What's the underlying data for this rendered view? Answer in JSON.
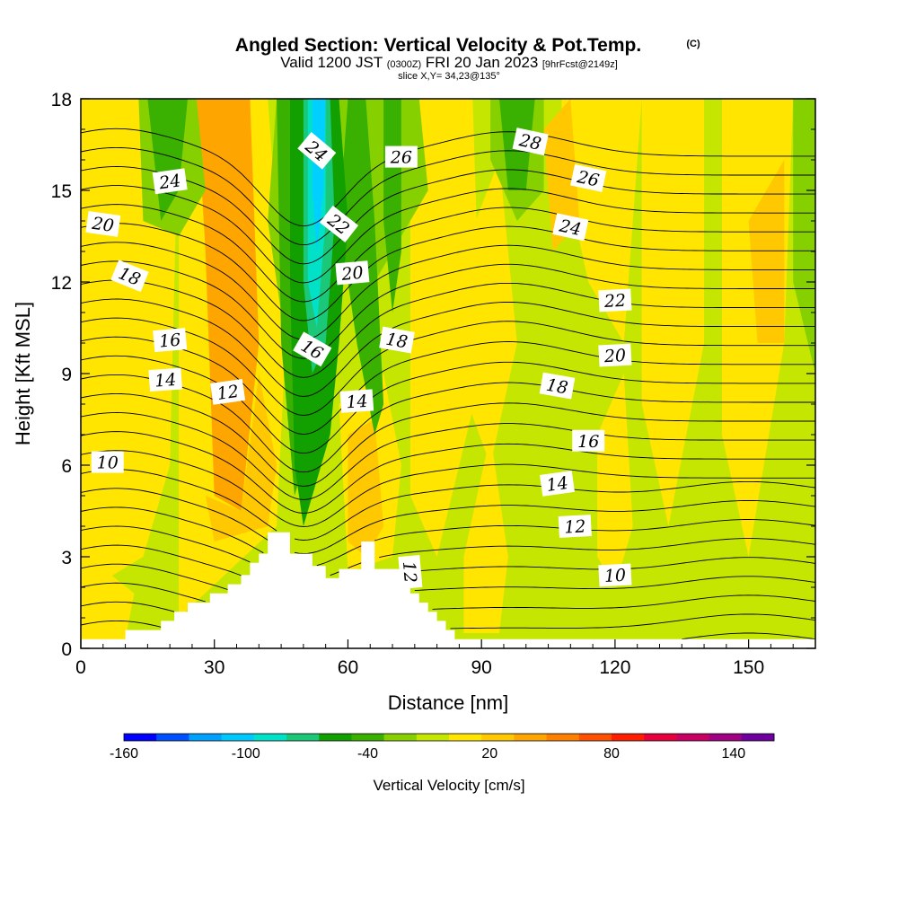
{
  "header": {
    "title": "Angled Section: Vertical Velocity & Pot.Temp.",
    "title_mark": "(C)",
    "valid_prefix": "Valid 1200 JST",
    "valid_utc": "(0300Z)",
    "valid_date": "FRI 20 Jan 2023",
    "forecast": "[9hrFcst@2149z]",
    "slice": "slice X,Y= 34,23@135°"
  },
  "chart_data": {
    "type": "heatmap",
    "title": "Angled Section: Vertical Velocity & Pot.Temp.",
    "xlabel": "Distance [nm]",
    "ylabel": "Height [Kft MSL]",
    "xlim": [
      0,
      165
    ],
    "ylim": [
      0,
      18
    ],
    "x_ticks": [
      0,
      30,
      60,
      90,
      120,
      150
    ],
    "y_ticks": [
      0,
      3,
      6,
      9,
      12,
      15,
      18
    ],
    "colors": {
      "base": "#c4e600",
      "yellow": "#ffe500",
      "gold": "#ffc800",
      "orange": "#ffa500",
      "light_green": "#87d000",
      "green": "#3ab000",
      "dark_green": "#11a000",
      "mint": "#1ac878",
      "cyan": "#00e1c8",
      "sky": "#00d0ff",
      "contour": "#000000",
      "terrain": "#ffffff"
    },
    "terrain": {
      "x": [
        0,
        10,
        10,
        18,
        18,
        21,
        21,
        24,
        24,
        29,
        29,
        33,
        33,
        36,
        36,
        38,
        38,
        40,
        40,
        42,
        42,
        47,
        47,
        52,
        52,
        55,
        55,
        58,
        58,
        61,
        61,
        63,
        63,
        66,
        66,
        72,
        72,
        74,
        74,
        76,
        76,
        78,
        78,
        80,
        80,
        82,
        82,
        84,
        84,
        86,
        86,
        88,
        88,
        165
      ],
      "height": [
        0.3,
        0.3,
        0.6,
        0.6,
        0.9,
        0.9,
        1.2,
        1.2,
        1.5,
        1.5,
        1.8,
        1.8,
        2.1,
        2.1,
        2.4,
        2.4,
        2.8,
        2.8,
        3.1,
        3.1,
        3.8,
        3.8,
        3.1,
        3.1,
        2.7,
        2.7,
        2.3,
        2.3,
        2.6,
        2.6,
        2.6,
        2.6,
        3.5,
        3.5,
        2.6,
        2.6,
        2.2,
        2.2,
        1.8,
        1.8,
        1.5,
        1.5,
        1.2,
        1.2,
        0.9,
        0.9,
        0.6,
        0.6,
        0.3,
        0.3,
        0.3,
        0.3,
        0.3,
        0.3
      ]
    },
    "velocity_regions": [
      {
        "color": "yellow",
        "points": [
          [
            0,
            18
          ],
          [
            22,
            18
          ],
          [
            20,
            6
          ],
          [
            14,
            3
          ],
          [
            5,
            2.2
          ],
          [
            0,
            2
          ]
        ]
      },
      {
        "color": "yellow",
        "points": [
          [
            22,
            18
          ],
          [
            42,
            18
          ],
          [
            46,
            10
          ],
          [
            44,
            4
          ],
          [
            22,
            1
          ]
        ]
      },
      {
        "color": "yellow",
        "points": [
          [
            58,
            8
          ],
          [
            68,
            9
          ],
          [
            72,
            6
          ],
          [
            70,
            3
          ],
          [
            60,
            2.5
          ]
        ]
      },
      {
        "color": "yellow",
        "points": [
          [
            86,
            3
          ],
          [
            92,
            7
          ],
          [
            96,
            3
          ],
          [
            94,
            0.5
          ],
          [
            86,
            0.5
          ]
        ]
      },
      {
        "color": "yellow",
        "points": [
          [
            74,
            18
          ],
          [
            88,
            18
          ],
          [
            90,
            9
          ],
          [
            80,
            3
          ],
          [
            74,
            5
          ]
        ]
      },
      {
        "color": "yellow",
        "points": [
          [
            86,
            13
          ],
          [
            94,
            16
          ],
          [
            98,
            10
          ],
          [
            92,
            6
          ],
          [
            87,
            8
          ]
        ]
      },
      {
        "color": "yellow",
        "points": [
          [
            108,
            18
          ],
          [
            126,
            18
          ],
          [
            122,
            10
          ],
          [
            114,
            12
          ],
          [
            108,
            16
          ]
        ]
      },
      {
        "color": "yellow",
        "points": [
          [
            126,
            18
          ],
          [
            140,
            18
          ],
          [
            140,
            10
          ],
          [
            132,
            4
          ],
          [
            126,
            8
          ]
        ]
      },
      {
        "color": "yellow",
        "points": [
          [
            144,
            18
          ],
          [
            160,
            18
          ],
          [
            158,
            10
          ],
          [
            150,
            3
          ],
          [
            144,
            7
          ]
        ]
      },
      {
        "color": "yellow",
        "points": [
          [
            116,
            7
          ],
          [
            122,
            9
          ],
          [
            124,
            4
          ],
          [
            120,
            2
          ],
          [
            116,
            3
          ]
        ]
      },
      {
        "color": "yellow",
        "points": [
          [
            0,
            2
          ],
          [
            6,
            2.5
          ],
          [
            12,
            1.8
          ],
          [
            10,
            0.3
          ],
          [
            0,
            0.3
          ]
        ]
      },
      {
        "color": "orange",
        "points": [
          [
            26,
            18
          ],
          [
            38,
            18
          ],
          [
            40,
            10
          ],
          [
            36,
            4.5
          ],
          [
            30,
            5
          ],
          [
            28,
            13
          ]
        ]
      },
      {
        "color": "gold",
        "points": [
          [
            28,
            5
          ],
          [
            36,
            4.5
          ],
          [
            40,
            9
          ],
          [
            44,
            6
          ],
          [
            42,
            4
          ],
          [
            30,
            3.5
          ]
        ]
      },
      {
        "color": "gold",
        "points": [
          [
            60,
            7
          ],
          [
            66,
            7.5
          ],
          [
            68,
            4
          ],
          [
            64,
            3
          ],
          [
            60,
            3.5
          ]
        ]
      },
      {
        "color": "gold",
        "points": [
          [
            104,
            17
          ],
          [
            110,
            18
          ],
          [
            112,
            14
          ],
          [
            106,
            13
          ]
        ]
      },
      {
        "color": "gold",
        "points": [
          [
            150,
            14
          ],
          [
            158,
            16
          ],
          [
            158,
            10
          ],
          [
            152,
            10
          ]
        ]
      },
      {
        "color": "light_green",
        "points": [
          [
            13,
            18
          ],
          [
            26,
            18
          ],
          [
            28,
            15
          ],
          [
            22,
            13.5
          ],
          [
            14,
            14
          ]
        ]
      },
      {
        "color": "light_green",
        "points": [
          [
            44,
            18
          ],
          [
            50,
            17
          ],
          [
            52,
            12
          ],
          [
            46,
            10
          ],
          [
            42,
            14
          ]
        ]
      },
      {
        "color": "light_green",
        "points": [
          [
            56,
            18
          ],
          [
            76,
            18
          ],
          [
            78,
            15
          ],
          [
            70,
            13
          ],
          [
            62,
            11
          ],
          [
            56,
            14
          ]
        ]
      },
      {
        "color": "light_green",
        "points": [
          [
            92,
            18
          ],
          [
            104,
            18
          ],
          [
            104,
            15
          ],
          [
            98,
            14
          ],
          [
            92,
            16
          ]
        ]
      },
      {
        "color": "light_green",
        "points": [
          [
            160,
            18
          ],
          [
            165,
            18
          ],
          [
            165,
            9
          ],
          [
            160,
            12
          ]
        ]
      },
      {
        "color": "green",
        "points": [
          [
            15,
            18
          ],
          [
            24,
            18
          ],
          [
            22,
            15
          ],
          [
            18,
            14
          ]
        ]
      },
      {
        "color": "green",
        "points": [
          [
            44,
            18
          ],
          [
            47,
            18
          ],
          [
            48,
            12
          ],
          [
            50,
            6
          ],
          [
            48,
            5
          ],
          [
            45,
            10
          ]
        ]
      },
      {
        "color": "green",
        "points": [
          [
            60,
            18
          ],
          [
            64,
            18
          ],
          [
            66,
            14
          ],
          [
            68,
            8
          ],
          [
            66,
            7
          ],
          [
            62,
            10
          ],
          [
            58,
            14
          ]
        ]
      },
      {
        "color": "green",
        "points": [
          [
            68,
            18
          ],
          [
            72,
            18
          ],
          [
            72,
            13
          ],
          [
            70,
            11
          ],
          [
            68,
            14
          ]
        ]
      },
      {
        "color": "green",
        "points": [
          [
            94,
            18
          ],
          [
            102,
            18
          ],
          [
            100,
            15
          ],
          [
            96,
            15
          ]
        ]
      },
      {
        "color": "dark_green",
        "points": [
          [
            47,
            18
          ],
          [
            58,
            18
          ],
          [
            60,
            14
          ],
          [
            58,
            10
          ],
          [
            56,
            7
          ],
          [
            52,
            5
          ],
          [
            50,
            4
          ],
          [
            48,
            6
          ],
          [
            47,
            12
          ]
        ]
      },
      {
        "color": "mint",
        "points": [
          [
            50,
            18
          ],
          [
            56,
            18
          ],
          [
            57,
            14
          ],
          [
            55,
            10
          ],
          [
            52,
            9
          ],
          [
            50,
            12
          ]
        ]
      },
      {
        "color": "cyan",
        "points": [
          [
            51,
            18
          ],
          [
            55,
            18
          ],
          [
            55,
            14
          ],
          [
            53,
            10.5
          ],
          [
            51,
            12
          ]
        ]
      },
      {
        "color": "sky",
        "points": [
          [
            52,
            18
          ],
          [
            55,
            18
          ],
          [
            54.5,
            15
          ],
          [
            53,
            13
          ],
          [
            52,
            15
          ]
        ]
      }
    ],
    "contour_levels": [
      2,
      3,
      4,
      5,
      6,
      7,
      8,
      9,
      10,
      11,
      12,
      13,
      14,
      15,
      16,
      17,
      18,
      19,
      20,
      21,
      22,
      23,
      24,
      25,
      26,
      27,
      28,
      29
    ],
    "contour_labels": [
      {
        "text": "24",
        "x": 20,
        "y": 15.3,
        "angle": -8
      },
      {
        "text": "20",
        "x": 5,
        "y": 13.9,
        "angle": 8
      },
      {
        "text": "18",
        "x": 11,
        "y": 12.2,
        "angle": 22
      },
      {
        "text": "16",
        "x": 20,
        "y": 10.1,
        "angle": -5
      },
      {
        "text": "14",
        "x": 19,
        "y": 8.8,
        "angle": -4
      },
      {
        "text": "12",
        "x": 33,
        "y": 8.4,
        "angle": -8
      },
      {
        "text": "10",
        "x": 6,
        "y": 6.1,
        "angle": 0
      },
      {
        "text": "24",
        "x": 53,
        "y": 16.3,
        "angle": 40
      },
      {
        "text": "22",
        "x": 58,
        "y": 13.9,
        "angle": 38
      },
      {
        "text": "20",
        "x": 61,
        "y": 12.3,
        "angle": -5
      },
      {
        "text": "16",
        "x": 52,
        "y": 9.8,
        "angle": 30
      },
      {
        "text": "18",
        "x": 71,
        "y": 10.1,
        "angle": 10
      },
      {
        "text": "14",
        "x": 62,
        "y": 8.1,
        "angle": -4
      },
      {
        "text": "26",
        "x": 72,
        "y": 16.1,
        "angle": 0
      },
      {
        "text": "12",
        "x": 74,
        "y": 2.5,
        "angle": 85
      },
      {
        "text": "28",
        "x": 101,
        "y": 16.6,
        "angle": 12
      },
      {
        "text": "26",
        "x": 114,
        "y": 15.4,
        "angle": 12
      },
      {
        "text": "24",
        "x": 110,
        "y": 13.8,
        "angle": 12
      },
      {
        "text": "22",
        "x": 120,
        "y": 11.4,
        "angle": -3
      },
      {
        "text": "20",
        "x": 120,
        "y": 9.6,
        "angle": -3
      },
      {
        "text": "18",
        "x": 107,
        "y": 8.6,
        "angle": 10
      },
      {
        "text": "16",
        "x": 114,
        "y": 6.8,
        "angle": 0
      },
      {
        "text": "14",
        "x": 107,
        "y": 5.4,
        "angle": -8
      },
      {
        "text": "12",
        "x": 111,
        "y": 4.0,
        "angle": -3
      },
      {
        "text": "10",
        "x": 120,
        "y": 2.4,
        "angle": -3
      }
    ],
    "colorbar": {
      "label": "Vertical Velocity [cm/s]",
      "min": -160,
      "max": 160,
      "step": 20,
      "tick_labels": [
        "-160",
        "-100",
        "-40",
        "20",
        "80",
        "140"
      ],
      "tick_values": [
        -160,
        -100,
        -40,
        20,
        80,
        140
      ],
      "colors": [
        "#0000ff",
        "#0050ff",
        "#00a0ff",
        "#00c8ff",
        "#00e1c8",
        "#1ac878",
        "#11a000",
        "#3ab000",
        "#87d000",
        "#c4e600",
        "#ffe500",
        "#ffc800",
        "#ffa500",
        "#ff8000",
        "#ff5000",
        "#ff1e00",
        "#e6003c",
        "#c80064",
        "#a00082",
        "#6e00a0"
      ]
    }
  }
}
